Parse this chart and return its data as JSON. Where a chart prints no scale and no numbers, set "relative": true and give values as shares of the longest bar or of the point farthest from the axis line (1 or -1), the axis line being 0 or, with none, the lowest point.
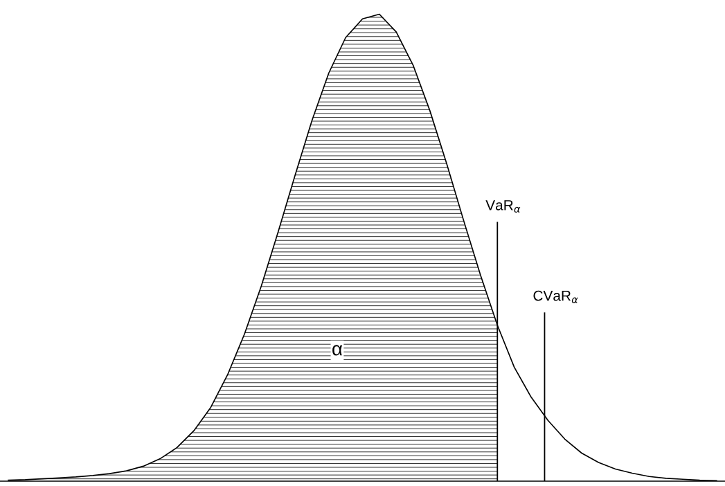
{
  "chart_data": {
    "type": "line",
    "relative": true,
    "categories": [
      null,
      null,
      null,
      null,
      null,
      null,
      null,
      null,
      null,
      null,
      null,
      null,
      null,
      null,
      null,
      null,
      null,
      null,
      null,
      null,
      null,
      null,
      null,
      null,
      null,
      null,
      null,
      null,
      null,
      null,
      null,
      null,
      null,
      null,
      null,
      null,
      null,
      null,
      null,
      null,
      null,
      null,
      null
    ],
    "series": [
      {
        "type": "area",
        "color": "#000000",
        "values": [
          0.002,
          0.003,
          0.005,
          0.007,
          0.009,
          0.012,
          0.016,
          0.022,
          0.032,
          0.048,
          0.072,
          0.108,
          0.158,
          0.228,
          0.315,
          0.418,
          0.534,
          0.655,
          0.772,
          0.874,
          0.95,
          0.99,
          1.0,
          0.962,
          0.891,
          0.793,
          0.679,
          0.558,
          0.441,
          0.334,
          null,
          null,
          null,
          null,
          null,
          null,
          null,
          null,
          null,
          null,
          null,
          null,
          null
        ]
      },
      {
        "color": "#000000",
        "values": [
          0.002,
          0.003,
          0.005,
          0.007,
          0.009,
          0.012,
          0.016,
          0.022,
          0.032,
          0.048,
          0.072,
          0.108,
          0.158,
          0.228,
          0.315,
          0.418,
          0.534,
          0.655,
          0.772,
          0.874,
          0.95,
          0.99,
          1.0,
          0.962,
          0.891,
          0.793,
          0.679,
          0.558,
          0.441,
          0.334,
          0.244,
          0.18,
          0.13,
          0.09,
          0.06,
          0.04,
          0.026,
          0.017,
          0.01,
          0.006,
          0.004,
          0.002,
          0.001
        ]
      }
    ],
    "annotations": [
      "α",
      "VaR$_{α}$",
      "CVaR$_{α}$"
    ]
  }
}
